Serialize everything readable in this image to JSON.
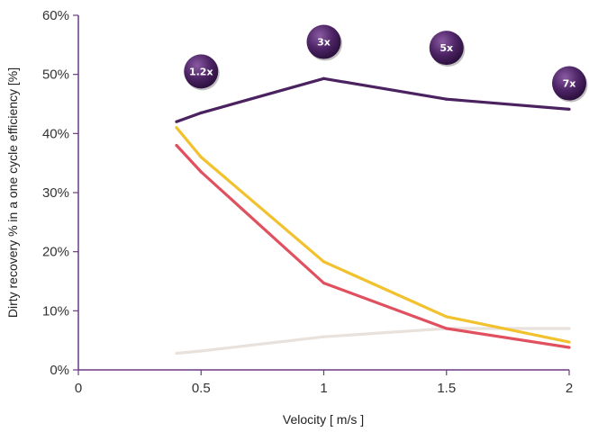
{
  "chart_data": {
    "type": "line",
    "xlabel": "Velocity [ m/s ]",
    "ylabel": "Dirty recovery % in a one cycle efficiency [%]",
    "xlim": [
      0,
      2
    ],
    "ylim": [
      0,
      60
    ],
    "x_ticks": [
      {
        "value": 0,
        "label": "0"
      },
      {
        "value": 0.5,
        "label": "0.5"
      },
      {
        "value": 1,
        "label": "1"
      },
      {
        "value": 1.5,
        "label": "1.5"
      },
      {
        "value": 2,
        "label": "2"
      }
    ],
    "y_ticks": [
      {
        "value": 0,
        "label": "0%"
      },
      {
        "value": 10,
        "label": "10%"
      },
      {
        "value": 20,
        "label": "20%"
      },
      {
        "value": 30,
        "label": "30%"
      },
      {
        "value": 40,
        "label": "40%"
      },
      {
        "value": 50,
        "label": "50%"
      },
      {
        "value": 60,
        "label": "60%"
      }
    ],
    "grid": false,
    "series": [
      {
        "color": "#e8e1dc",
        "x": [
          0.4,
          0.5,
          1,
          1.5,
          2
        ],
        "y": [
          2.8,
          3.2,
          5.6,
          7.0,
          7.0
        ]
      },
      {
        "color": "#f2c12e",
        "x": [
          0.4,
          0.5,
          1,
          1.5,
          2
        ],
        "y": [
          41.0,
          36.0,
          18.3,
          9.0,
          4.7
        ]
      },
      {
        "color": "#e0505e",
        "x": [
          0.4,
          0.5,
          1,
          1.5,
          2
        ],
        "y": [
          38.0,
          33.5,
          14.7,
          7.0,
          3.8
        ]
      },
      {
        "color": "#4a2260",
        "x": [
          0.4,
          0.5,
          1,
          1.5,
          2
        ],
        "y": [
          42.0,
          43.5,
          49.3,
          45.8,
          44.1
        ]
      }
    ],
    "annotations": [
      {
        "text": "1.2x",
        "x": 0.5,
        "y": 50.5
      },
      {
        "text": "3x",
        "x": 1.0,
        "y": 55.5
      },
      {
        "text": "5x",
        "x": 1.5,
        "y": 54.5
      },
      {
        "text": "7x",
        "x": 2.0,
        "y": 48.5
      }
    ]
  }
}
